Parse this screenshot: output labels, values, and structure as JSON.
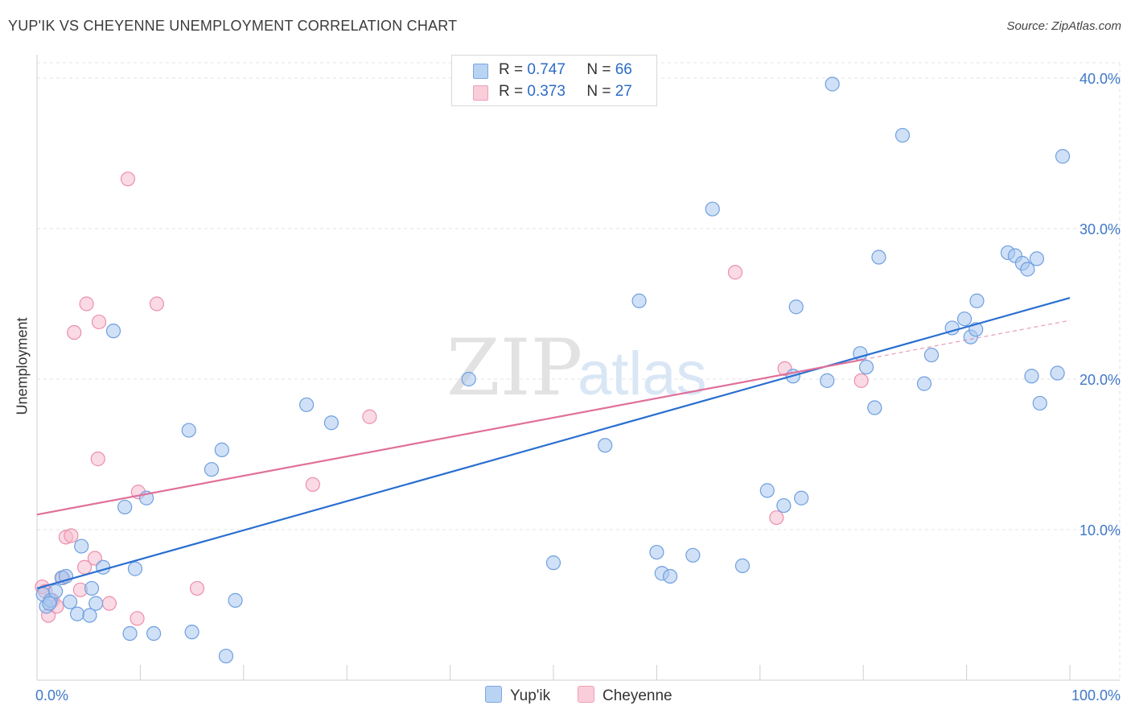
{
  "title": "YUP'IK VS CHEYENNE UNEMPLOYMENT CORRELATION CHART",
  "source": "Source: ZipAtlas.com",
  "watermark": {
    "zip": "ZIP",
    "atlas": "atlas"
  },
  "legend": {
    "rows": [
      {
        "r_label": "R =",
        "r_value": "0.747",
        "n_label": "N =",
        "n_value": "66"
      },
      {
        "r_label": "R =",
        "r_value": "0.373",
        "n_label": "N =",
        "n_value": "27"
      }
    ]
  },
  "bottom_legend": {
    "yupik": "Yup'ik",
    "cheyenne": "Cheyenne"
  },
  "colors": {
    "yupik_fill": "#a9c8f0",
    "yupik_stroke": "#6f9fe0",
    "yupik_line": "#2a6fd0",
    "cheyenne_fill": "#f6bccd",
    "cheyenne_stroke": "#ec8fab",
    "cheyenne_line": "#e0709a",
    "axis_label": "#3f78c9",
    "grid": "#e3e3e3"
  },
  "chart_data": {
    "type": "scatter",
    "title": "YUP'IK VS CHEYENNE UNEMPLOYMENT CORRELATION CHART",
    "xlabel": "",
    "ylabel": "Unemployment",
    "xlim": [
      0,
      100
    ],
    "ylim": [
      0,
      40
    ],
    "x_tick_labels": [
      "0.0%",
      "100.0%"
    ],
    "y_ticks": [
      10,
      20,
      30,
      40
    ],
    "y_tick_labels": [
      "10.0%",
      "20.0%",
      "30.0%",
      "40.0%"
    ],
    "grid": true,
    "legend_position": "top-center",
    "series": [
      {
        "name": "Yup'ik",
        "points": [
          [
            0.6,
            5.7
          ],
          [
            0.9,
            4.9
          ],
          [
            1.3,
            5.3
          ],
          [
            1.8,
            5.9
          ],
          [
            2.4,
            6.8
          ],
          [
            2.8,
            6.9
          ],
          [
            3.2,
            5.2
          ],
          [
            3.9,
            4.4
          ],
          [
            4.3,
            8.9
          ],
          [
            5.1,
            4.3
          ],
          [
            5.3,
            6.1
          ],
          [
            5.7,
            5.1
          ],
          [
            6.4,
            7.5
          ],
          [
            7.4,
            23.2
          ],
          [
            8.5,
            11.5
          ],
          [
            9.0,
            3.1
          ],
          [
            9.5,
            7.4
          ],
          [
            10.6,
            12.1
          ],
          [
            11.3,
            3.1
          ],
          [
            14.7,
            16.6
          ],
          [
            15.0,
            3.2
          ],
          [
            16.9,
            14.0
          ],
          [
            17.9,
            15.3
          ],
          [
            18.3,
            1.6
          ],
          [
            19.2,
            5.3
          ],
          [
            26.1,
            18.3
          ],
          [
            28.5,
            17.1
          ],
          [
            41.8,
            20.0
          ],
          [
            50.0,
            7.8
          ],
          [
            55.0,
            15.6
          ],
          [
            58.3,
            25.2
          ],
          [
            60.0,
            8.5
          ],
          [
            60.5,
            7.1
          ],
          [
            61.3,
            6.9
          ],
          [
            63.5,
            8.3
          ],
          [
            65.4,
            31.3
          ],
          [
            68.3,
            7.6
          ],
          [
            70.7,
            12.6
          ],
          [
            72.3,
            11.6
          ],
          [
            73.2,
            20.2
          ],
          [
            73.5,
            24.8
          ],
          [
            74.0,
            12.1
          ],
          [
            76.5,
            19.9
          ],
          [
            77.0,
            39.6
          ],
          [
            79.7,
            21.7
          ],
          [
            80.3,
            20.8
          ],
          [
            81.1,
            18.1
          ],
          [
            81.5,
            28.1
          ],
          [
            83.8,
            36.2
          ],
          [
            85.9,
            19.7
          ],
          [
            86.6,
            21.6
          ],
          [
            88.6,
            23.4
          ],
          [
            89.8,
            24.0
          ],
          [
            90.4,
            22.8
          ],
          [
            90.9,
            23.3
          ],
          [
            91.0,
            25.2
          ],
          [
            94.0,
            28.4
          ],
          [
            94.7,
            28.2
          ],
          [
            95.4,
            27.7
          ],
          [
            95.9,
            27.3
          ],
          [
            96.3,
            20.2
          ],
          [
            96.8,
            28.0
          ],
          [
            97.1,
            18.4
          ],
          [
            98.8,
            20.4
          ],
          [
            99.3,
            34.8
          ],
          [
            1.2,
            5.1
          ]
        ],
        "trend": [
          [
            0,
            6.1
          ],
          [
            100,
            25.4
          ]
        ]
      },
      {
        "name": "Cheyenne",
        "points": [
          [
            0.5,
            6.2
          ],
          [
            0.8,
            5.9
          ],
          [
            1.1,
            4.3
          ],
          [
            1.5,
            5.3
          ],
          [
            1.9,
            4.9
          ],
          [
            2.5,
            6.8
          ],
          [
            2.8,
            9.5
          ],
          [
            3.3,
            9.6
          ],
          [
            3.6,
            23.1
          ],
          [
            4.2,
            6.0
          ],
          [
            4.6,
            7.5
          ],
          [
            4.8,
            25.0
          ],
          [
            5.6,
            8.1
          ],
          [
            5.9,
            14.7
          ],
          [
            6.0,
            23.8
          ],
          [
            7.0,
            5.1
          ],
          [
            8.8,
            33.3
          ],
          [
            9.7,
            4.1
          ],
          [
            9.8,
            12.5
          ],
          [
            11.6,
            25.0
          ],
          [
            15.5,
            6.1
          ],
          [
            26.7,
            13.0
          ],
          [
            32.2,
            17.5
          ],
          [
            67.6,
            27.1
          ],
          [
            71.6,
            10.8
          ],
          [
            72.4,
            20.7
          ],
          [
            79.8,
            19.9
          ]
        ],
        "trend": [
          [
            0,
            11.0
          ],
          [
            80,
            21.3
          ]
        ],
        "trend_dashed": [
          [
            80,
            21.3
          ],
          [
            100,
            23.9
          ]
        ]
      }
    ]
  }
}
